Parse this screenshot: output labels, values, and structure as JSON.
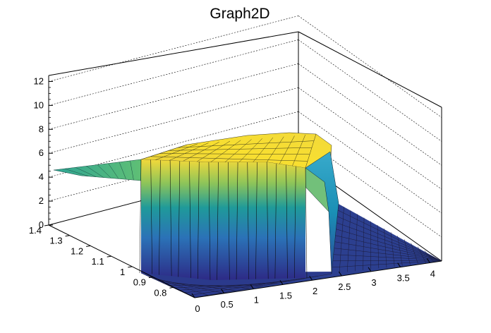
{
  "chart_data": {
    "type": "surface3d",
    "title": "Graph2D",
    "xlabel": "",
    "ylabel": "",
    "zlabel": "",
    "xlim": [
      0,
      4.2
    ],
    "ylim": [
      0.7,
      1.4
    ],
    "zlim": [
      0,
      12.5
    ],
    "x_ticks": [
      "0",
      "0.5",
      "1",
      "1.5",
      "2",
      "2.5",
      "3",
      "3.5",
      "4"
    ],
    "y_ticks": [
      "0.8",
      "0.9",
      "1",
      "1.1",
      "1.2",
      "1.3",
      "1.4"
    ],
    "z_ticks": [
      "0",
      "2",
      "4",
      "6",
      "8",
      "10",
      "12"
    ],
    "grid": true,
    "colormap": "viridis-like (navy to yellow)",
    "surface_description": {
      "low_plateau_x": [
        0,
        0.5
      ],
      "low_plateau_height": 4.4,
      "main_plateau_x": [
        0.5,
        2.1
      ],
      "main_plateau_height_range": [
        5.5,
        8.0
      ],
      "drop_to_zero_after_x": 2.15,
      "floor_height": 0
    },
    "colors": {
      "low": "#2d2a86",
      "mid": "#1f9a9a",
      "high": "#f5dd34",
      "axis": "#000000",
      "grid": "#000000"
    }
  }
}
